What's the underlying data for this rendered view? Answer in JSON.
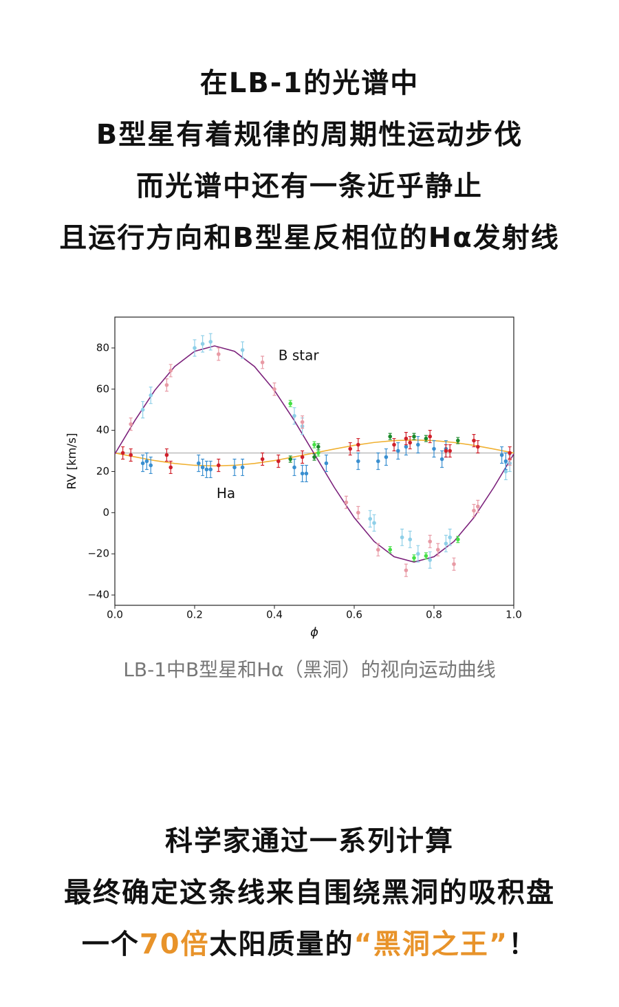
{
  "intro": {
    "lines": [
      "在LB-1的光谱中",
      "B型星有着规律的周期性运动步伐",
      "而光谱中还有一条近乎静止",
      "且运行方向和B型星反相位的Hα发射线"
    ]
  },
  "chart_data": {
    "type": "scatter",
    "xlabel": "ϕ",
    "ylabel": "RV [km/s]",
    "xlim": [
      0,
      1
    ],
    "ylim": [
      -45,
      95
    ],
    "xticks": [
      {
        "value": 0,
        "label": "0.0"
      },
      0.2,
      0.4,
      0.6,
      0.8,
      {
        "value": 1,
        "label": "1.0"
      }
    ],
    "yticks": [
      {
        "value": -40,
        "label": "−40"
      },
      {
        "value": -20,
        "label": "−20"
      },
      0,
      20,
      40,
      60,
      80
    ],
    "annotations": [
      {
        "text": "B star",
        "x": 0.41,
        "y": 76
      },
      {
        "text": "Ha",
        "x": 0.255,
        "y": 9
      }
    ],
    "series": [
      {
        "style": "line",
        "color": "#c0c0c0",
        "x": [
          0,
          1
        ],
        "values": [
          29,
          29
        ]
      },
      {
        "style": "line",
        "color": "#f0b030",
        "x": [
          0,
          0.05,
          0.1,
          0.15,
          0.2,
          0.25,
          0.3,
          0.35,
          0.4,
          0.45,
          0.5,
          0.55,
          0.6,
          0.65,
          0.7,
          0.75,
          0.8,
          0.85,
          0.9,
          0.95,
          1
        ],
        "values": [
          29.0,
          27.1,
          25.3,
          23.9,
          23.0,
          22.7,
          23.0,
          23.9,
          25.3,
          27.1,
          29.0,
          30.9,
          32.7,
          34.1,
          35.0,
          35.3,
          35.0,
          34.1,
          32.7,
          30.9,
          29.0
        ]
      },
      {
        "style": "line",
        "color": "#7a1f7a",
        "x": [
          0,
          0.05,
          0.1,
          0.15,
          0.2,
          0.25,
          0.3,
          0.35,
          0.4,
          0.45,
          0.5,
          0.55,
          0.6,
          0.65,
          0.7,
          0.75,
          0.8,
          0.85,
          0.9,
          0.95,
          1
        ],
        "values": [
          28.5,
          44.7,
          59.4,
          71.0,
          78.4,
          81.0,
          78.4,
          71.0,
          59.4,
          44.7,
          28.5,
          12.3,
          -2.4,
          -14.0,
          -21.4,
          -24.0,
          -21.4,
          -14.0,
          -2.4,
          12.3,
          28.5
        ]
      },
      {
        "style": "points",
        "color": "#8ecfe8",
        "x": [
          0.07,
          0.09,
          0.2,
          0.22,
          0.24,
          0.32,
          0.45,
          0.47,
          0.64,
          0.65,
          0.72,
          0.74,
          0.76,
          0.79,
          0.83,
          0.84,
          0.98,
          0.99
        ],
        "values": [
          50,
          57,
          80,
          82,
          83,
          79,
          47,
          42,
          -3,
          -5,
          -12,
          -13,
          -20,
          -23,
          -15,
          -12,
          20,
          24
        ],
        "errors": [
          4,
          4,
          4,
          4,
          4,
          4,
          4,
          4,
          4,
          4,
          4,
          4,
          4,
          4,
          4,
          4,
          4,
          4
        ]
      },
      {
        "style": "points",
        "color": "#e89aa5",
        "x": [
          0.04,
          0.13,
          0.14,
          0.26,
          0.37,
          0.4,
          0.47,
          0.58,
          0.61,
          0.66,
          0.73,
          0.79,
          0.81,
          0.85,
          0.9,
          0.91,
          0.99
        ],
        "values": [
          43,
          62,
          69,
          77,
          73,
          60,
          44,
          5,
          0,
          -18,
          -28,
          -14,
          -18,
          -25,
          1,
          3,
          26
        ],
        "errors": [
          3,
          3,
          3,
          3,
          3,
          3,
          3,
          3,
          3,
          3,
          3,
          3,
          3,
          3,
          3,
          3,
          3
        ]
      },
      {
        "style": "points",
        "color": "#44e044",
        "x": [
          0.44,
          0.5,
          0.51,
          0.69,
          0.75,
          0.78,
          0.86
        ],
        "values": [
          53,
          33,
          29,
          -18,
          -22,
          -21,
          -13
        ],
        "errors": [
          1.5,
          1.5,
          1.5,
          1.5,
          1.5,
          1.5,
          1.5
        ]
      },
      {
        "style": "points",
        "color": "#3a8fd0",
        "x": [
          0.07,
          0.08,
          0.09,
          0.21,
          0.22,
          0.23,
          0.24,
          0.3,
          0.32,
          0.45,
          0.47,
          0.48,
          0.53,
          0.61,
          0.66,
          0.68,
          0.71,
          0.73,
          0.76,
          0.8,
          0.82,
          0.83,
          0.97,
          0.98
        ],
        "values": [
          24,
          25,
          23,
          24,
          22,
          21,
          21,
          22,
          22,
          22,
          19,
          19,
          24,
          25,
          25,
          27,
          30,
          32,
          33,
          31,
          26,
          31,
          28,
          25
        ],
        "errors": [
          4,
          4,
          4,
          4,
          4,
          4,
          4,
          4,
          4,
          4,
          4,
          4,
          4,
          4,
          4,
          4,
          4,
          4,
          4,
          4,
          4,
          4,
          4,
          4
        ]
      },
      {
        "style": "points",
        "color": "#d0202a",
        "x": [
          0.02,
          0.04,
          0.13,
          0.14,
          0.26,
          0.37,
          0.41,
          0.47,
          0.59,
          0.61,
          0.7,
          0.73,
          0.74,
          0.79,
          0.83,
          0.84,
          0.9,
          0.91,
          0.99
        ],
        "values": [
          29,
          28,
          28,
          22,
          23,
          26,
          25,
          27,
          31,
          33,
          33,
          36,
          34,
          37,
          30,
          30,
          35,
          32,
          29
        ],
        "errors": [
          3,
          3,
          3,
          3,
          3,
          3,
          3,
          3,
          3,
          3,
          3,
          3,
          3,
          3,
          3,
          3,
          3,
          3,
          3
        ]
      },
      {
        "style": "points",
        "color": "#1a8a2a",
        "x": [
          0.44,
          0.5,
          0.51,
          0.69,
          0.75,
          0.78,
          0.86
        ],
        "values": [
          26,
          27,
          32,
          37,
          37,
          36,
          35
        ],
        "errors": [
          1.5,
          1.5,
          1.5,
          1.5,
          1.5,
          1.5,
          1.5
        ]
      }
    ]
  },
  "caption": "LB-1中B型星和Hα（黑洞）的视向运动曲线",
  "outro": {
    "lines": [
      [
        {
          "text": "科学家通过一系列计算"
        }
      ],
      [
        {
          "text": "最终确定这条线来自围绕黑洞的吸积盘"
        }
      ],
      [
        {
          "text": "一个"
        },
        {
          "text": "70倍",
          "color": "#e8932a"
        },
        {
          "text": "太阳质量的"
        },
        {
          "text": "“黑洞之王”",
          "color": "#e8932a"
        },
        {
          "text": "！"
        }
      ]
    ]
  }
}
